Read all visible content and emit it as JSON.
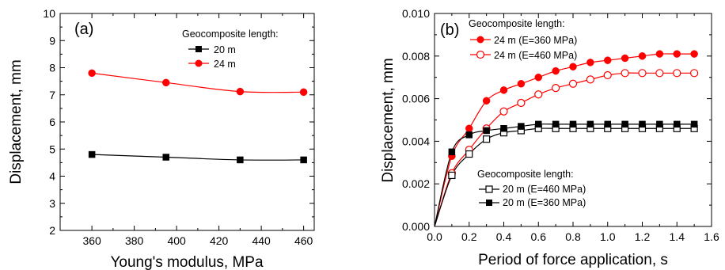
{
  "chart_data": [
    {
      "type": "line",
      "panel_label": "(a)",
      "xlabel": "Young's modulus, MPa",
      "ylabel": "Displacement, mm",
      "xlim": [
        345,
        465
      ],
      "ylim": [
        2,
        10
      ],
      "xticks": [
        360,
        380,
        400,
        420,
        440,
        460
      ],
      "yticks": [
        2,
        3,
        4,
        5,
        6,
        7,
        8,
        9,
        10
      ],
      "grid": false,
      "legend_title": "Geocomposite length:",
      "legend_position": "top-right",
      "series": [
        {
          "name": "20 m",
          "color": "#000000",
          "marker": "square-filled",
          "x": [
            360,
            395,
            430,
            460
          ],
          "y": [
            4.8,
            4.7,
            4.6,
            4.6
          ]
        },
        {
          "name": "24 m",
          "color": "#ff0000",
          "marker": "circle-filled",
          "x": [
            360,
            395,
            430,
            460
          ],
          "y": [
            7.8,
            7.45,
            7.12,
            7.1
          ]
        }
      ]
    },
    {
      "type": "line",
      "panel_label": "(b)",
      "xlabel": "Period of force application, s",
      "ylabel": "Displacement, mm",
      "xlim": [
        0,
        1.6
      ],
      "ylim": [
        0,
        0.01
      ],
      "xticks": [
        0.0,
        0.2,
        0.4,
        0.6,
        0.8,
        1.0,
        1.2,
        1.4,
        1.6
      ],
      "xtick_labels": [
        "0.0",
        "0.2",
        "0.4",
        "0.6",
        "0.8",
        "1.0",
        "1.2",
        "1.4",
        "1.6"
      ],
      "yticks": [
        0,
        0.002,
        0.004,
        0.006,
        0.008,
        0.01
      ],
      "ytick_labels": [
        "0.000",
        "0.002",
        "0.004",
        "0.006",
        "0.008",
        "0.010"
      ],
      "grid": false,
      "legend_groups": [
        {
          "title": "Geocomposite length:",
          "position": "top-left",
          "entries": [
            "24 m (E=360 MPa)",
            "24 m (E=460 MPa)"
          ]
        },
        {
          "title": "Geocomposite length:",
          "position": "bottom-right",
          "entries": [
            "20 m (E=460 MPa)",
            "20 m (E=360 MPa)"
          ]
        }
      ],
      "series": [
        {
          "name": "24 m (E=360 MPa)",
          "color": "#ff0000",
          "marker": "circle-filled",
          "x": [
            0,
            0.1,
            0.2,
            0.3,
            0.4,
            0.5,
            0.6,
            0.7,
            0.8,
            0.9,
            1.0,
            1.1,
            1.2,
            1.3,
            1.4,
            1.5
          ],
          "y": [
            0,
            0.0033,
            0.0046,
            0.0059,
            0.0064,
            0.0067,
            0.007,
            0.0073,
            0.0075,
            0.0077,
            0.0078,
            0.0079,
            0.008,
            0.0081,
            0.0081,
            0.0081
          ]
        },
        {
          "name": "24 m (E=460 MPa)",
          "color": "#ff0000",
          "marker": "circle-open",
          "x": [
            0,
            0.1,
            0.2,
            0.3,
            0.4,
            0.5,
            0.6,
            0.7,
            0.8,
            0.9,
            1.0,
            1.1,
            1.2,
            1.3,
            1.4,
            1.5
          ],
          "y": [
            0,
            0.0025,
            0.0036,
            0.0046,
            0.0054,
            0.0058,
            0.0062,
            0.0065,
            0.0067,
            0.0069,
            0.0071,
            0.0072,
            0.0072,
            0.0072,
            0.0072,
            0.0072
          ]
        },
        {
          "name": "20 m (E=460 MPa)",
          "color": "#000000",
          "marker": "square-open",
          "x": [
            0,
            0.1,
            0.2,
            0.3,
            0.4,
            0.5,
            0.6,
            0.7,
            0.8,
            0.9,
            1.0,
            1.1,
            1.2,
            1.3,
            1.4,
            1.5
          ],
          "y": [
            0,
            0.0024,
            0.0034,
            0.0041,
            0.0044,
            0.0045,
            0.0046,
            0.0046,
            0.0046,
            0.0046,
            0.0046,
            0.0046,
            0.0046,
            0.0046,
            0.0046,
            0.0046
          ]
        },
        {
          "name": "20 m (E=360 MPa)",
          "color": "#000000",
          "marker": "square-filled",
          "x": [
            0,
            0.1,
            0.2,
            0.3,
            0.4,
            0.5,
            0.6,
            0.7,
            0.8,
            0.9,
            1.0,
            1.1,
            1.2,
            1.3,
            1.4,
            1.5
          ],
          "y": [
            0,
            0.0035,
            0.0043,
            0.0045,
            0.0046,
            0.0047,
            0.0048,
            0.0048,
            0.0048,
            0.0048,
            0.0048,
            0.0048,
            0.0048,
            0.0048,
            0.0048,
            0.0048
          ]
        }
      ]
    }
  ]
}
